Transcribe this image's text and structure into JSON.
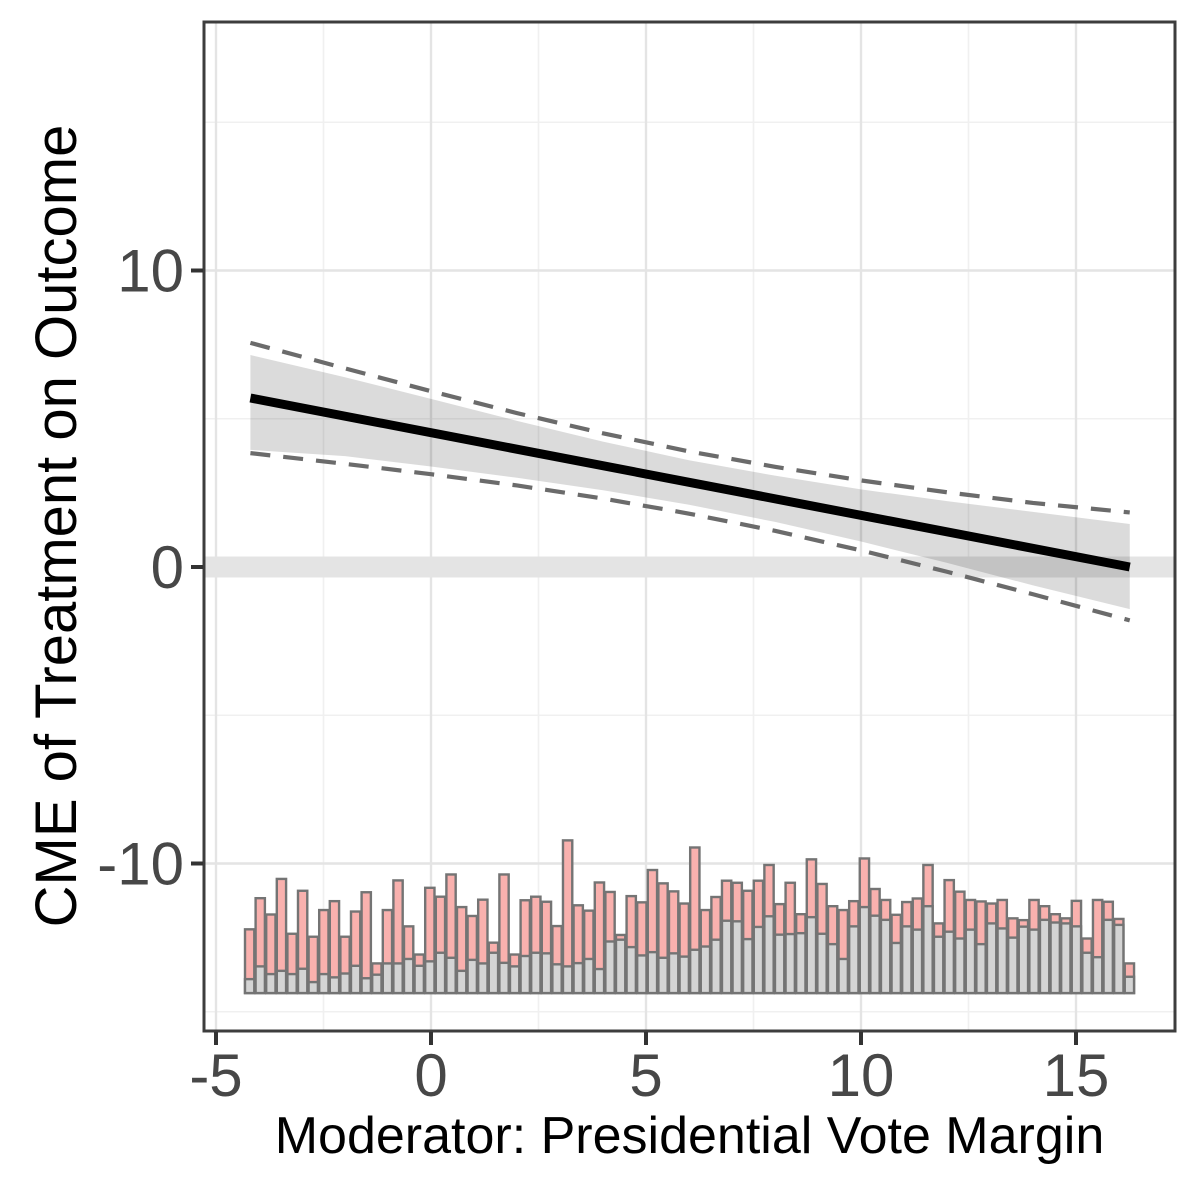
{
  "chart_data": {
    "type": "line",
    "title": "",
    "xlabel": "Moderator: Presidential Vote Margin",
    "ylabel": "CME of Treatment on Outcome",
    "xlim": [
      -5.3,
      17.3
    ],
    "ylim": [
      -15.7,
      18.4
    ],
    "grid": "on",
    "legend": "none",
    "x_ticks": [
      {
        "v": -5,
        "label": "-5"
      },
      {
        "v": 0,
        "label": "0"
      },
      {
        "v": 5,
        "label": "5"
      },
      {
        "v": 10,
        "label": "10"
      },
      {
        "v": 15,
        "label": "15"
      }
    ],
    "y_ticks": [
      {
        "v": 10,
        "label": "10"
      },
      {
        "v": 0,
        "label": "0"
      },
      {
        "v": -10,
        "label": "-10"
      }
    ],
    "zero_reference_line": {
      "y": 0,
      "color": "#e4e4e4"
    },
    "cme_line": {
      "x": [
        -4.2,
        16.25
      ],
      "y": [
        5.7,
        0.0
      ],
      "color": "#000000"
    },
    "ci_band": {
      "x": [
        -4.2,
        -2.0,
        0.0,
        2.0,
        4.0,
        6.0,
        8.0,
        10.0,
        12.0,
        14.0,
        16.25
      ],
      "upper": [
        7.15,
        6.4,
        5.67,
        4.93,
        4.23,
        3.6,
        3.08,
        2.62,
        2.22,
        1.86,
        1.45
      ],
      "lower": [
        3.95,
        3.74,
        3.39,
        3.01,
        2.59,
        2.1,
        1.52,
        0.86,
        0.14,
        -0.62,
        -1.42
      ],
      "fill": "rgba(0,0,0,0.14)"
    },
    "ci_dashed": {
      "x": [
        -4.2,
        -2.0,
        0.0,
        2.0,
        4.0,
        6.0,
        8.0,
        10.0,
        12.0,
        14.0,
        16.25
      ],
      "upper": [
        7.56,
        6.7,
        5.93,
        5.19,
        4.51,
        3.9,
        3.38,
        2.92,
        2.52,
        2.16,
        1.84
      ],
      "lower": [
        3.84,
        3.48,
        3.13,
        2.75,
        2.31,
        1.8,
        1.22,
        0.56,
        -0.16,
        -0.92,
        -1.8
      ],
      "color": "#6b6b6b"
    },
    "histogram": {
      "base": -14.37,
      "bin_start": -4.3256,
      "bin_stride": 0.2465,
      "bar_width": 0.216,
      "treated_color": "#f9b1ae",
      "control_color": "#d4d4d4",
      "outline_color": "#747474",
      "bars": [
        [
          2.15,
          0.47
        ],
        [
          3.2,
          0.9
        ],
        [
          2.65,
          0.64
        ],
        [
          3.85,
          0.75
        ],
        [
          2.0,
          0.64
        ],
        [
          3.45,
          0.82
        ],
        [
          1.9,
          0.37
        ],
        [
          2.8,
          0.64
        ],
        [
          3.1,
          0.53
        ],
        [
          1.9,
          0.66
        ],
        [
          2.75,
          0.92
        ],
        [
          3.4,
          0.5
        ],
        [
          1.0,
          0.62
        ],
        [
          2.8,
          1.0
        ],
        [
          3.8,
          1.0
        ],
        [
          2.25,
          1.15
        ],
        [
          1.3,
          0.92
        ],
        [
          3.55,
          1.07
        ],
        [
          3.25,
          1.36
        ],
        [
          4.0,
          1.19
        ],
        [
          2.9,
          0.75
        ],
        [
          2.6,
          1.12
        ],
        [
          3.15,
          1.0
        ],
        [
          1.7,
          1.36
        ],
        [
          4.0,
          1.02
        ],
        [
          1.3,
          0.9
        ],
        [
          3.13,
          1.25
        ],
        [
          3.25,
          1.36
        ],
        [
          3.08,
          1.34
        ],
        [
          2.26,
          0.97
        ],
        [
          5.15,
          0.9
        ],
        [
          2.96,
          1.01
        ],
        [
          2.78,
          1.15
        ],
        [
          3.73,
          0.81
        ],
        [
          3.41,
          1.74
        ],
        [
          1.96,
          1.8
        ],
        [
          3.27,
          1.55
        ],
        [
          3.06,
          1.27
        ],
        [
          4.15,
          1.38
        ],
        [
          3.7,
          1.19
        ],
        [
          3.43,
          1.34
        ],
        [
          3.02,
          1.23
        ],
        [
          4.91,
          1.46
        ],
        [
          2.8,
          1.57
        ],
        [
          3.24,
          1.8
        ],
        [
          3.79,
          2.44
        ],
        [
          3.72,
          2.42
        ],
        [
          3.45,
          1.82
        ],
        [
          3.79,
          2.23
        ],
        [
          4.32,
          2.59
        ],
        [
          3.0,
          1.97
        ],
        [
          3.72,
          1.99
        ],
        [
          2.66,
          2.02
        ],
        [
          4.51,
          2.56
        ],
        [
          3.68,
          2.0
        ],
        [
          2.93,
          1.65
        ],
        [
          2.8,
          1.15
        ],
        [
          3.1,
          2.25
        ],
        [
          4.54,
          2.9
        ],
        [
          3.51,
          2.61
        ],
        [
          3.14,
          2.47
        ],
        [
          2.64,
          1.69
        ],
        [
          3.07,
          2.25
        ],
        [
          3.19,
          2.14
        ],
        [
          4.32,
          2.93
        ],
        [
          2.35,
          1.9
        ],
        [
          3.81,
          2.07
        ],
        [
          3.42,
          1.84
        ],
        [
          3.14,
          2.14
        ],
        [
          3.09,
          1.65
        ],
        [
          3.02,
          2.35
        ],
        [
          3.14,
          2.18
        ],
        [
          2.52,
          1.87
        ],
        [
          2.46,
          2.24
        ],
        [
          3.14,
          2.14
        ],
        [
          2.93,
          2.47
        ],
        [
          2.66,
          2.38
        ],
        [
          2.52,
          2.35
        ],
        [
          3.11,
          2.25
        ],
        [
          1.84,
          1.36
        ],
        [
          3.14,
          1.21
        ],
        [
          3.08,
          2.47
        ],
        [
          2.5,
          2.3
        ],
        [
          1.0,
          0.55
        ]
      ]
    },
    "style": {
      "grid_major_color": "#e4e4e4",
      "grid_minor_color": "#f0f0f0",
      "panel_border_color": "#3d3d3d",
      "tick_mark_color": "#333333",
      "tick_label_color": "#474747"
    }
  }
}
